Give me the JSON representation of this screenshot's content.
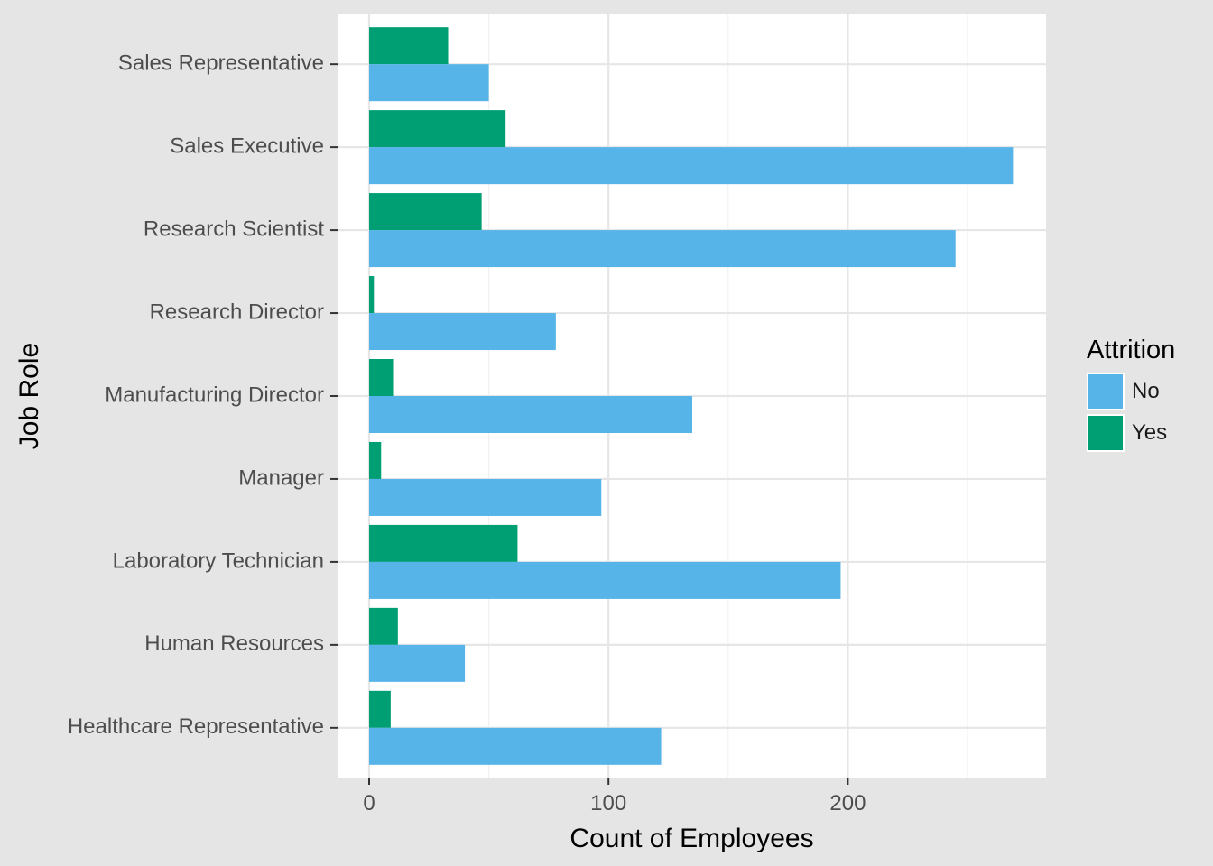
{
  "chart_data": {
    "type": "bar",
    "orientation": "horizontal",
    "xlabel": "Count of Employees",
    "ylabel": "Job Role",
    "xlim": [
      -14,
      284
    ],
    "xticks": [
      0,
      100,
      200
    ],
    "grid": true,
    "legend_position": "right",
    "categories": [
      "Healthcare Representative",
      "Human Resources",
      "Laboratory Technician",
      "Manager",
      "Manufacturing Director",
      "Research Director",
      "Research Scientist",
      "Sales Executive",
      "Sales Representative"
    ],
    "legend_title": "Attrition",
    "series": [
      {
        "name": "No",
        "color": "#56b4e9",
        "values": [
          122,
          40,
          197,
          97,
          135,
          78,
          245,
          269,
          50
        ]
      },
      {
        "name": "Yes",
        "color": "#009e73",
        "values": [
          9,
          12,
          62,
          5,
          10,
          2,
          47,
          57,
          33
        ]
      }
    ]
  }
}
